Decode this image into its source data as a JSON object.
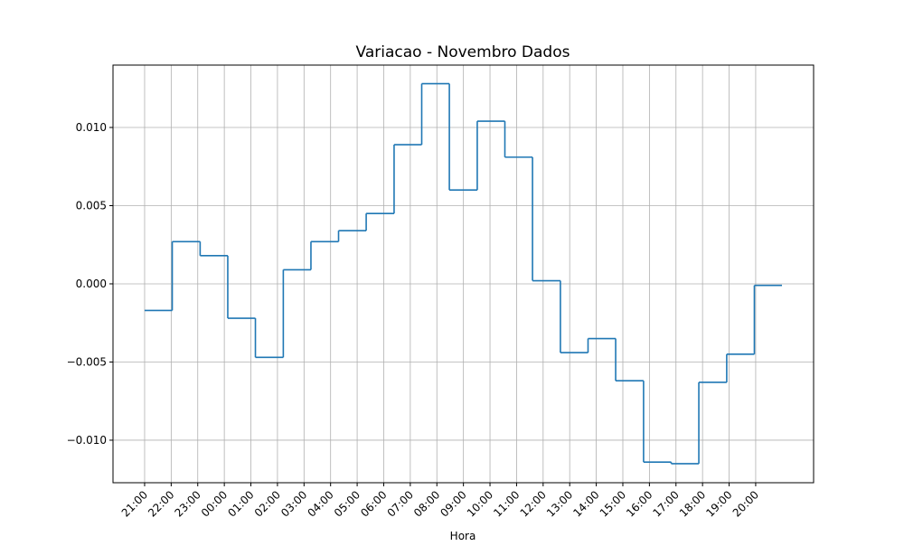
{
  "chart_data": {
    "type": "step",
    "title": "Variacao - Novembro Dados",
    "x_label": "Hora",
    "x": [
      0,
      1.04,
      2.09,
      3.13,
      4.17,
      5.22,
      6.26,
      7.3,
      8.34,
      9.39,
      10.43,
      11.47,
      12.52,
      13.56,
      14.6,
      15.65,
      16.69,
      17.73,
      18.78,
      19.82,
      20.86,
      21.91,
      22.95
    ],
    "values": [
      -0.0017,
      0.0027,
      0.0018,
      -0.0022,
      -0.0047,
      0.0009,
      0.0027,
      0.0034,
      0.0045,
      0.0089,
      0.0128,
      0.006,
      0.0104,
      0.0081,
      0.0002,
      -0.0044,
      -0.0035,
      -0.0062,
      -0.0114,
      -0.0115,
      -0.0063,
      -0.0045,
      -0.0001
    ],
    "color": "#1f77b4",
    "xlim": [
      -1.19,
      25.18
    ],
    "xticks": [
      {
        "value": 0,
        "label": "21:00"
      },
      {
        "value": 1,
        "label": "22:00"
      },
      {
        "value": 2,
        "label": "23:00"
      },
      {
        "value": 3,
        "label": "00:00"
      },
      {
        "value": 4,
        "label": "01:00"
      },
      {
        "value": 5,
        "label": "02:00"
      },
      {
        "value": 6,
        "label": "03:00"
      },
      {
        "value": 7,
        "label": "04:00"
      },
      {
        "value": 8,
        "label": "05:00"
      },
      {
        "value": 9,
        "label": "06:00"
      },
      {
        "value": 10,
        "label": "07:00"
      },
      {
        "value": 11,
        "label": "08:00"
      },
      {
        "value": 12,
        "label": "09:00"
      },
      {
        "value": 13,
        "label": "10:00"
      },
      {
        "value": 14,
        "label": "11:00"
      },
      {
        "value": 15,
        "label": "12:00"
      },
      {
        "value": 16,
        "label": "13:00"
      },
      {
        "value": 17,
        "label": "14:00"
      },
      {
        "value": 18,
        "label": "15:00"
      },
      {
        "value": 19,
        "label": "16:00"
      },
      {
        "value": 20,
        "label": "17:00"
      },
      {
        "value": 21,
        "label": "18:00"
      },
      {
        "value": 22,
        "label": "19:00"
      },
      {
        "value": 23,
        "label": "20:00"
      }
    ],
    "ylim": [
      -0.01272,
      0.01399
    ],
    "yticks": [
      {
        "value": -0.01,
        "label": "−0.010"
      },
      {
        "value": -0.005,
        "label": "−0.005"
      },
      {
        "value": 0,
        "label": "0.000"
      },
      {
        "value": 0.005,
        "label": "0.005"
      },
      {
        "value": 0.01,
        "label": "0.010"
      }
    ],
    "grid": true
  }
}
